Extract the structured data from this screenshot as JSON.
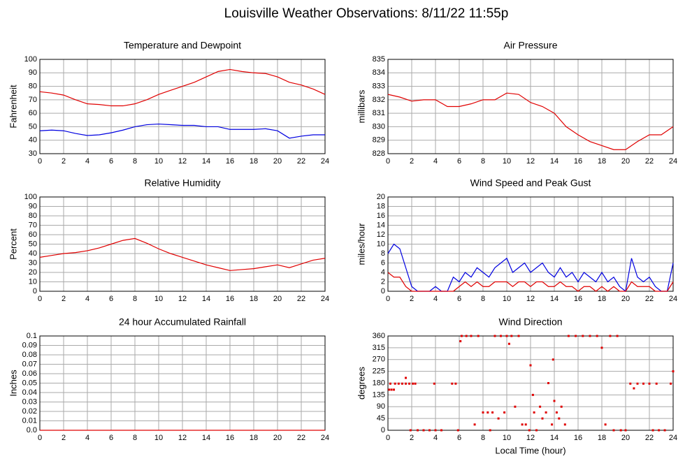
{
  "title": "Louisville Weather Observations: 8/11/22 11:55p",
  "chart_data": [
    {
      "type": "line",
      "title": "Temperature and Dewpoint",
      "ylabel": "Fahrenheit",
      "x": [
        0,
        1,
        2,
        3,
        4,
        5,
        6,
        7,
        8,
        9,
        10,
        11,
        12,
        13,
        14,
        15,
        16,
        17,
        18,
        19,
        20,
        21,
        22,
        23,
        24
      ],
      "series": [
        {
          "color": "#e00000",
          "values": [
            76,
            75,
            73.5,
            70,
            67,
            66.5,
            65.5,
            65.5,
            67,
            70,
            74,
            77,
            80,
            83,
            87,
            91,
            92.5,
            91,
            90,
            89.5,
            87,
            83,
            81,
            78,
            74
          ]
        },
        {
          "color": "#0000e0",
          "values": [
            47,
            47.5,
            47,
            45,
            43.5,
            44,
            45.5,
            47.5,
            50,
            51.5,
            52,
            51.5,
            51,
            51,
            50,
            50,
            48,
            48,
            48,
            48.5,
            47,
            41.5,
            43,
            44,
            44
          ]
        }
      ],
      "xlim": [
        0,
        24
      ],
      "xticks": [
        0,
        2,
        4,
        6,
        8,
        10,
        12,
        14,
        16,
        18,
        20,
        22,
        24
      ],
      "ylim": [
        30,
        100
      ],
      "yticks": [
        30,
        40,
        50,
        60,
        70,
        80,
        90,
        100
      ],
      "grid": true
    },
    {
      "type": "line",
      "title": "Air Pressure",
      "ylabel": "millibars",
      "x": [
        0,
        1,
        2,
        3,
        4,
        5,
        6,
        7,
        8,
        9,
        10,
        11,
        12,
        13,
        14,
        15,
        16,
        17,
        18,
        19,
        20,
        21,
        22,
        23,
        24
      ],
      "series": [
        {
          "color": "#e00000",
          "values": [
            832.4,
            832.2,
            831.9,
            832,
            832,
            831.5,
            831.5,
            831.7,
            832,
            832,
            832.5,
            832.4,
            831.8,
            831.5,
            831,
            830,
            829.4,
            828.9,
            828.6,
            828.3,
            828.3,
            828.9,
            829.4,
            829.4,
            830
          ]
        }
      ],
      "xlim": [
        0,
        24
      ],
      "xticks": [
        0,
        2,
        4,
        6,
        8,
        10,
        12,
        14,
        16,
        18,
        20,
        22,
        24
      ],
      "ylim": [
        828,
        835
      ],
      "yticks": [
        828,
        829,
        830,
        831,
        832,
        833,
        834,
        835
      ],
      "grid": true
    },
    {
      "type": "line",
      "title": "Relative Humidity",
      "ylabel": "Percent",
      "x": [
        0,
        1,
        2,
        3,
        4,
        5,
        6,
        7,
        8,
        9,
        10,
        11,
        12,
        13,
        14,
        15,
        16,
        17,
        18,
        19,
        20,
        21,
        22,
        23,
        24
      ],
      "series": [
        {
          "color": "#e00000",
          "values": [
            36,
            38,
            40,
            41,
            43,
            46,
            50,
            54,
            56,
            51,
            45,
            40,
            36,
            32,
            28,
            25,
            22,
            23,
            24,
            26,
            28,
            25,
            29,
            33,
            35
          ]
        }
      ],
      "xlim": [
        0,
        24
      ],
      "xticks": [
        0,
        2,
        4,
        6,
        8,
        10,
        12,
        14,
        16,
        18,
        20,
        22,
        24
      ],
      "ylim": [
        0,
        100
      ],
      "yticks": [
        0,
        10,
        20,
        30,
        40,
        50,
        60,
        70,
        80,
        90,
        100
      ],
      "grid": true
    },
    {
      "type": "line",
      "title": "Wind Speed and Peak Gust",
      "ylabel": "miles/hour",
      "x": [
        0,
        0.5,
        1,
        1.5,
        2,
        2.5,
        3,
        3.5,
        4,
        4.5,
        5,
        5.5,
        6,
        6.5,
        7,
        7.5,
        8,
        8.5,
        9,
        9.5,
        10,
        10.5,
        11,
        11.5,
        12,
        12.5,
        13,
        13.5,
        14,
        14.5,
        15,
        15.5,
        16,
        16.5,
        17,
        17.5,
        18,
        18.5,
        19,
        19.5,
        20,
        20.5,
        21,
        21.5,
        22,
        22.5,
        23,
        23.5,
        24
      ],
      "series": [
        {
          "color": "#0000e0",
          "values": [
            8,
            10,
            9,
            5,
            1,
            0,
            0,
            0,
            1,
            0,
            0,
            3,
            2,
            4,
            3,
            5,
            4,
            3,
            5,
            6,
            7,
            4,
            5,
            6,
            4,
            5,
            6,
            4,
            3,
            5,
            3,
            4,
            2,
            4,
            3,
            2,
            4,
            2,
            3,
            1,
            0,
            7,
            3,
            2,
            3,
            1,
            0,
            0,
            6
          ]
        },
        {
          "color": "#e00000",
          "values": [
            4,
            3,
            3,
            1,
            0,
            0,
            0,
            0,
            0,
            0,
            0,
            0,
            1,
            2,
            1,
            2,
            1,
            1,
            2,
            2,
            2,
            1,
            2,
            2,
            1,
            2,
            2,
            1,
            1,
            2,
            1,
            1,
            0,
            1,
            1,
            0,
            1,
            0,
            1,
            0,
            0,
            2,
            1,
            1,
            1,
            0,
            0,
            0,
            2
          ]
        }
      ],
      "xlim": [
        0,
        24
      ],
      "xticks": [
        0,
        2,
        4,
        6,
        8,
        10,
        12,
        14,
        16,
        18,
        20,
        22,
        24
      ],
      "ylim": [
        0,
        20
      ],
      "yticks": [
        0,
        2,
        4,
        6,
        8,
        10,
        12,
        14,
        16,
        18,
        20
      ],
      "grid": true
    },
    {
      "type": "line",
      "title": "24 hour Accumulated Rainfall",
      "ylabel": "Inches",
      "x": [
        0,
        24
      ],
      "series": [
        {
          "color": "#e00000",
          "values": [
            0,
            0
          ]
        }
      ],
      "xlim": [
        0,
        24
      ],
      "xticks": [
        0,
        2,
        4,
        6,
        8,
        10,
        12,
        14,
        16,
        18,
        20,
        22,
        24
      ],
      "ylim": [
        0,
        0.1
      ],
      "yticks": [
        {
          "value": 0,
          "label": "0.0"
        },
        0.01,
        0.02,
        0.03,
        0.04,
        0.05,
        0.06,
        0.07,
        0.08,
        0.09,
        {
          "value": 0.1,
          "label": "0.1"
        }
      ],
      "grid": true
    },
    {
      "type": "scatter",
      "title": "Wind Direction",
      "ylabel": "degrees",
      "xlabel": "Local Time (hour)",
      "color": "#e00000",
      "x": [
        0.1,
        0.3,
        0.5,
        0.2,
        0.6,
        0.9,
        1.2,
        1.5,
        1.8,
        2.1,
        2.3,
        1.5,
        1.9,
        2.5,
        3,
        3.5,
        4,
        4.5,
        3.9,
        5.4,
        5.7,
        5.9,
        6.1,
        6.2,
        6.6,
        7,
        7.3,
        7.6,
        8,
        8.4,
        8.8,
        8.6,
        9,
        9.3,
        9.5,
        9.8,
        10,
        10.2,
        10.4,
        10.7,
        11,
        11.3,
        11.6,
        11.9,
        12,
        12.2,
        12.3,
        12.5,
        12.8,
        13,
        13.3,
        13.5,
        13.8,
        13.9,
        14,
        14.2,
        14.4,
        14.6,
        14.9,
        15.2,
        15.8,
        16.4,
        17,
        17.6,
        18,
        18.3,
        18.7,
        19.3,
        19,
        19.6,
        20,
        20.4,
        20.7,
        21,
        21.5,
        22,
        22.3,
        22.8,
        23.3,
        22.6,
        23.8,
        24
      ],
      "values": [
        155,
        155,
        155,
        178,
        178,
        178,
        178,
        178,
        178,
        178,
        178,
        200,
        0,
        0,
        0,
        0,
        0,
        0,
        178,
        178,
        178,
        0,
        340,
        360,
        360,
        360,
        22,
        360,
        68,
        68,
        68,
        0,
        360,
        45,
        360,
        68,
        360,
        330,
        360,
        90,
        360,
        22,
        22,
        0,
        248,
        135,
        68,
        0,
        90,
        45,
        68,
        180,
        22,
        270,
        112,
        68,
        45,
        90,
        22,
        360,
        360,
        360,
        360,
        360,
        315,
        22,
        360,
        360,
        0,
        0,
        0,
        178,
        160,
        178,
        178,
        178,
        0,
        0,
        0,
        178,
        178,
        225
      ],
      "xlim": [
        0,
        24
      ],
      "xticks": [
        0,
        2,
        4,
        6,
        8,
        10,
        12,
        14,
        16,
        18,
        20,
        22,
        24
      ],
      "ylim": [
        0,
        360
      ],
      "yticks": [
        0,
        45,
        90,
        135,
        180,
        225,
        270,
        315,
        360
      ],
      "grid": true
    }
  ]
}
